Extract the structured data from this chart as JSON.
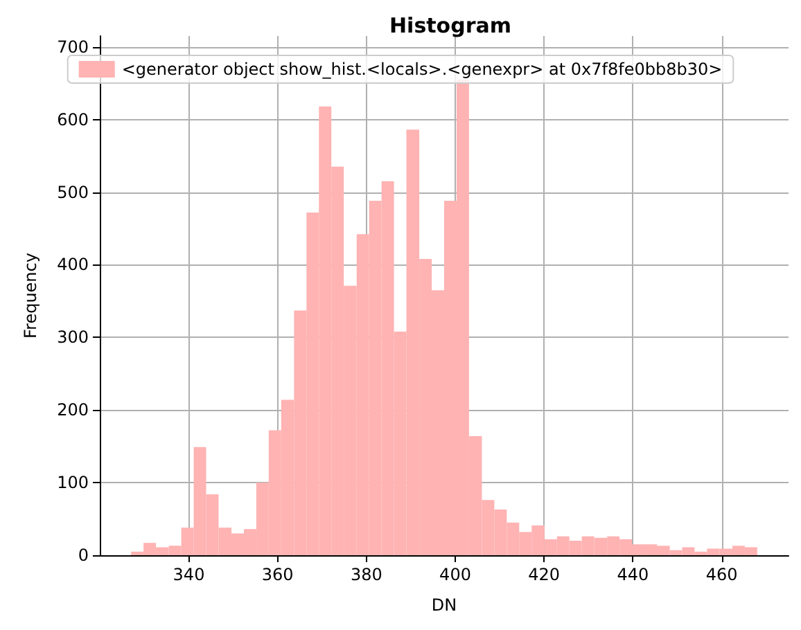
{
  "chart_data": {
    "type": "histogram",
    "title": "Histogram",
    "xlabel": "DN",
    "ylabel": "Frequency",
    "bins": [
      327,
      329.8,
      332.6,
      335.5,
      338.3,
      341.1,
      343.9,
      346.7,
      349.6,
      352.4,
      355.2,
      358,
      360.8,
      363.7,
      366.5,
      369.3,
      372.1,
      374.9,
      377.8,
      380.6,
      383.4,
      386.2,
      389,
      391.9,
      394.7,
      397.5,
      400.3,
      403.1,
      406,
      408.8,
      411.6,
      414.4,
      417.2,
      420.1,
      422.9,
      425.7,
      428.5,
      431.3,
      434.2,
      437,
      439.8,
      442.6,
      445.4,
      448.3,
      451.1,
      453.9,
      456.7,
      459.5,
      462.4,
      465.2,
      468
    ],
    "series": [
      {
        "name": "<generator object show_hist.<locals>.<genexpr> at 0x7f8fe0bb8b30>",
        "color": "#ffb3b3",
        "values": [
          5,
          17,
          11,
          13,
          38,
          149,
          84,
          38,
          30,
          36,
          100,
          172,
          214,
          337,
          472,
          618,
          535,
          371,
          442,
          488,
          515,
          308,
          586,
          408,
          365,
          488,
          655,
          164,
          76,
          63,
          45,
          32,
          41,
          22,
          26,
          20,
          26,
          24,
          26,
          22,
          15,
          15,
          13,
          7,
          11,
          5,
          9,
          9,
          13,
          11
        ]
      }
    ],
    "xlim": [
      319.95,
      475.05
    ],
    "ylim": [
      0,
      715
    ],
    "xticks": [
      340,
      360,
      380,
      400,
      420,
      440,
      460
    ],
    "yticks": [
      0,
      100,
      200,
      300,
      400,
      500,
      600,
      700
    ],
    "grid": true,
    "legend": "top"
  }
}
